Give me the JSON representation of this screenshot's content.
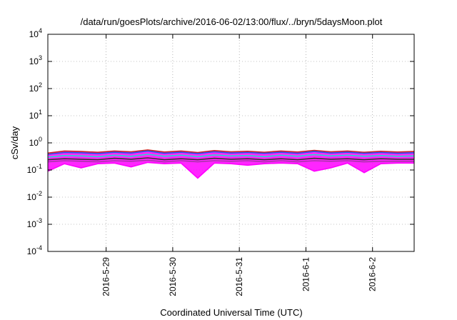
{
  "chart_data": {
    "type": "area",
    "title": "/data/run/goesPlots/archive/2016-06-02/13:00/flux/../bryn/5daysMoon.plot",
    "xlabel": "Coordinated Universal Time (UTC)",
    "ylabel": "cSv/day",
    "yscale": "log",
    "ylim": [
      0.0001,
      10000
    ],
    "xlim": [
      "2016-05-28 03:00",
      "2016-06-02 15:00"
    ],
    "grid": true,
    "x_ticks": [
      {
        "date": "2016-05-29 00:00",
        "label": "2016-5-29"
      },
      {
        "date": "2016-05-30 00:00",
        "label": "2016-5-30"
      },
      {
        "date": "2016-05-31 00:00",
        "label": "2016-5-31"
      },
      {
        "date": "2016-06-01 00:00",
        "label": "2016-6-1"
      },
      {
        "date": "2016-06-02 00:00",
        "label": "2016-6-2"
      }
    ],
    "y_ticks": [
      {
        "base": "10",
        "exp": "4",
        "value": 10000
      },
      {
        "base": "10",
        "exp": "3",
        "value": 1000
      },
      {
        "base": "10",
        "exp": "2",
        "value": 100
      },
      {
        "base": "10",
        "exp": "1",
        "value": 10
      },
      {
        "base": "10",
        "exp": "0",
        "value": 1
      },
      {
        "base": "10",
        "exp": "-1",
        "value": 0.1
      },
      {
        "base": "10",
        "exp": "-2",
        "value": 0.01
      },
      {
        "base": "10",
        "exp": "-3",
        "value": 0.001
      },
      {
        "base": "10",
        "exp": "-4",
        "value": 0.0001
      }
    ],
    "series_colors": [
      "#cc2222",
      "#2255ee",
      "#22ddcc",
      "#333333",
      "#aa33aa",
      "#ff00ff"
    ],
    "fill_color": "#ff00ff",
    "x": [
      "2016-05-28 03:00",
      "2016-05-28 09:00",
      "2016-05-28 15:00",
      "2016-05-28 21:00",
      "2016-05-29 03:00",
      "2016-05-29 09:00",
      "2016-05-29 15:00",
      "2016-05-29 21:00",
      "2016-05-30 03:00",
      "2016-05-30 09:00",
      "2016-05-30 15:00",
      "2016-05-30 21:00",
      "2016-05-31 03:00",
      "2016-05-31 09:00",
      "2016-05-31 15:00",
      "2016-05-31 21:00",
      "2016-06-01 03:00",
      "2016-06-01 09:00",
      "2016-06-01 15:00",
      "2016-06-01 21:00",
      "2016-06-02 03:00",
      "2016-06-02 09:00",
      "2016-06-02 15:00"
    ],
    "series": [
      {
        "values": [
          0.42,
          0.5,
          0.48,
          0.45,
          0.5,
          0.47,
          0.55,
          0.46,
          0.5,
          0.44,
          0.52,
          0.47,
          0.49,
          0.45,
          0.5,
          0.46,
          0.53,
          0.47,
          0.5,
          0.45,
          0.49,
          0.46,
          0.48
        ]
      },
      {
        "values": [
          0.38,
          0.44,
          0.43,
          0.4,
          0.45,
          0.42,
          0.5,
          0.41,
          0.45,
          0.4,
          0.47,
          0.42,
          0.44,
          0.41,
          0.45,
          0.41,
          0.48,
          0.42,
          0.45,
          0.41,
          0.44,
          0.41,
          0.43
        ]
      },
      {
        "values": [
          0.3,
          0.34,
          0.33,
          0.31,
          0.35,
          0.32,
          0.38,
          0.32,
          0.35,
          0.31,
          0.36,
          0.33,
          0.34,
          0.31,
          0.35,
          0.32,
          0.37,
          0.33,
          0.35,
          0.32,
          0.34,
          0.32,
          0.33
        ]
      },
      {
        "values": [
          0.24,
          0.26,
          0.25,
          0.24,
          0.27,
          0.25,
          0.28,
          0.24,
          0.26,
          0.24,
          0.27,
          0.25,
          0.26,
          0.24,
          0.26,
          0.24,
          0.27,
          0.25,
          0.26,
          0.24,
          0.26,
          0.25,
          0.25
        ]
      },
      {
        "values": [
          0.2,
          0.22,
          0.21,
          0.2,
          0.22,
          0.21,
          0.23,
          0.2,
          0.22,
          0.2,
          0.22,
          0.21,
          0.22,
          0.2,
          0.22,
          0.2,
          0.22,
          0.21,
          0.22,
          0.2,
          0.21,
          0.21,
          0.21
        ]
      },
      {
        "values": [
          0.09,
          0.17,
          0.12,
          0.17,
          0.18,
          0.13,
          0.19,
          0.17,
          0.18,
          0.05,
          0.18,
          0.17,
          0.15,
          0.17,
          0.18,
          0.17,
          0.09,
          0.12,
          0.18,
          0.08,
          0.17,
          0.18,
          0.18
        ]
      }
    ]
  }
}
